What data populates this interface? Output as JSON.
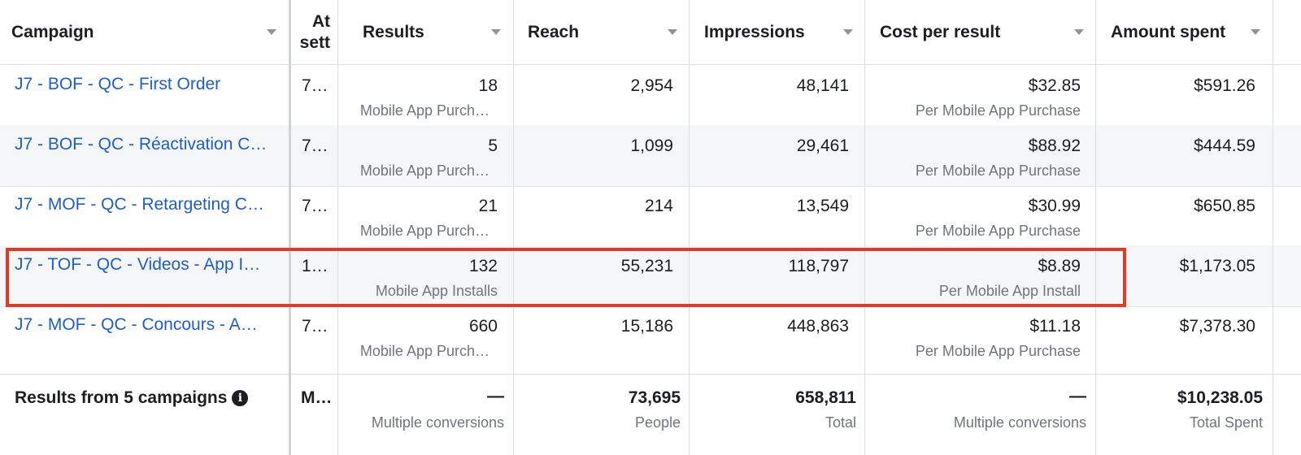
{
  "columns": {
    "campaign": "Campaign",
    "attribution_line1": "At",
    "attribution_line2": "sett",
    "results": "Results",
    "reach": "Reach",
    "impressions": "Impressions",
    "cost_per_result": "Cost per result",
    "amount_spent": "Amount spent"
  },
  "rows": [
    {
      "campaign": "J7 - BOF - QC - First Order",
      "attribution": "7…",
      "results": "18",
      "results_type": "Mobile App Purch…",
      "reach": "2,954",
      "impressions": "48,141",
      "cost_per_result": "$32.85",
      "cost_type": "Per Mobile App Purchase",
      "amount_spent": "$591.26"
    },
    {
      "campaign": "J7 - BOF - QC - Réactivation C…",
      "attribution": "7…",
      "results": "5",
      "results_type": "Mobile App Purch…",
      "reach": "1,099",
      "impressions": "29,461",
      "cost_per_result": "$88.92",
      "cost_type": "Per Mobile App Purchase",
      "amount_spent": "$444.59"
    },
    {
      "campaign": "J7 - MOF - QC - Retargeting C…",
      "attribution": "7…",
      "results": "21",
      "results_type": "Mobile App Purch…",
      "reach": "214",
      "impressions": "13,549",
      "cost_per_result": "$30.99",
      "cost_type": "Per Mobile App Purchase",
      "amount_spent": "$650.85"
    },
    {
      "campaign": "J7 - TOF - QC - Videos - App I…",
      "attribution": "1…",
      "results": "132",
      "results_type": "Mobile App Installs",
      "reach": "55,231",
      "impressions": "118,797",
      "cost_per_result": "$8.89",
      "cost_type": "Per Mobile App Install",
      "amount_spent": "$1,173.05"
    },
    {
      "campaign": "J7 - MOF - QC - Concours - A…",
      "attribution": "7…",
      "results": "660",
      "results_type": "Mobile App Purch…",
      "reach": "15,186",
      "impressions": "448,863",
      "cost_per_result": "$11.18",
      "cost_type": "Per Mobile App Purchase",
      "amount_spent": "$7,378.30"
    }
  ],
  "totals": {
    "label": "Results from 5 campaigns",
    "info_icon_glyph": "i",
    "attribution": "M…",
    "results": "—",
    "results_sub": "Multiple conversions",
    "reach": "73,695",
    "reach_sub": "People",
    "impressions": "658,811",
    "impressions_sub": "Total",
    "cost_per_result": "—",
    "cost_sub": "Multiple conversions",
    "amount_spent": "$10,238.05",
    "amount_sub": "Total Spent"
  },
  "colors": {
    "link": "#1d5fc4",
    "highlight_border": "#e33a26",
    "alt_row": "#f5f6f7"
  },
  "highlighted_row_index": 3
}
